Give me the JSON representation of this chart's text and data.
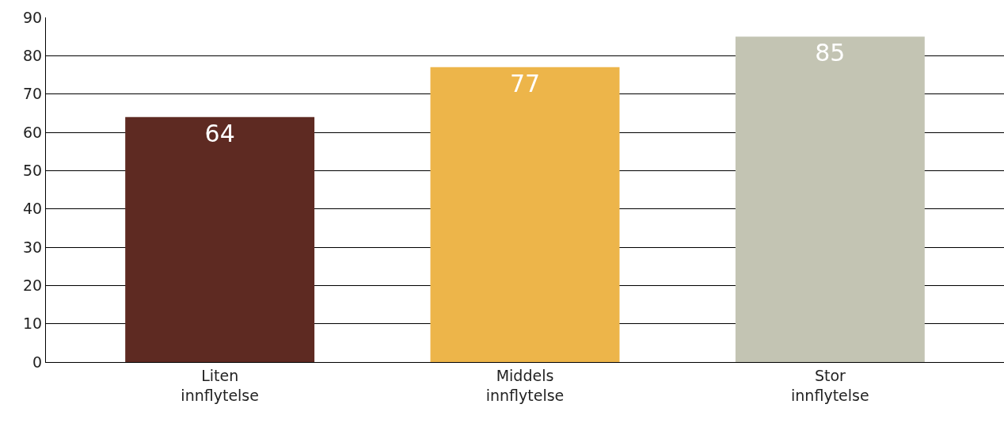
{
  "chart_data": {
    "type": "bar",
    "categories": [
      "Liten innflytelse",
      "Middels innflytelse",
      "Stor innflytelse"
    ],
    "values": [
      64,
      77,
      85
    ],
    "colors": [
      "#5e2a22",
      "#edb54a",
      "#c3c4b3"
    ],
    "ylim": [
      0,
      90
    ],
    "yticks": [
      0,
      10,
      20,
      30,
      40,
      50,
      60,
      70,
      80,
      90
    ],
    "grid": "y",
    "data_labels": true,
    "legend": false
  }
}
